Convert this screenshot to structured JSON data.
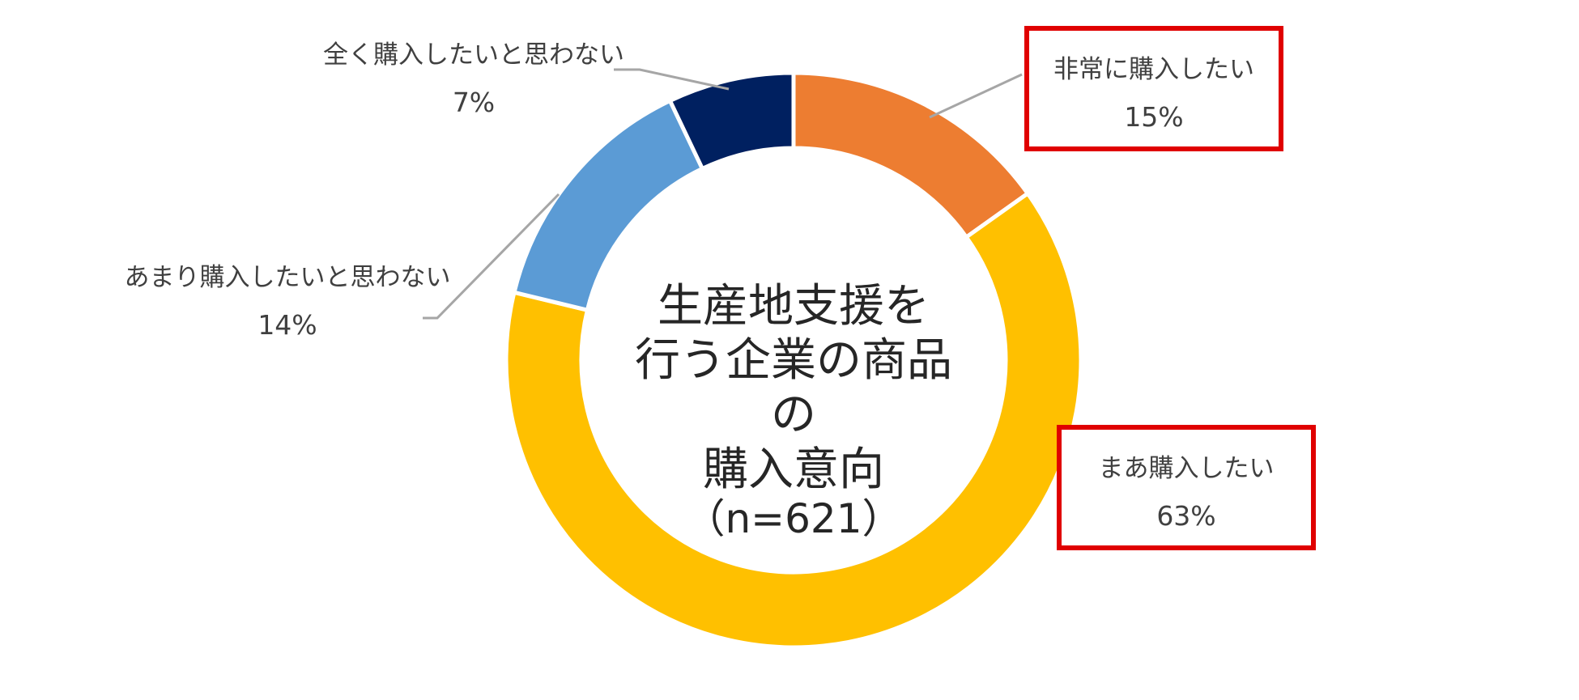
{
  "chart_data": {
    "type": "pie",
    "donut": true,
    "categories": [
      "非常に購入したい",
      "まあ購入したい",
      "あまり購入したいと思わない",
      "全く購入したいと思わない"
    ],
    "values": [
      15,
      63,
      14,
      7
    ],
    "value_labels": [
      "15%",
      "63%",
      "14%",
      "7%"
    ],
    "colors": [
      "#ed7d31",
      "#ffc000",
      "#5b9bd5",
      "#002060"
    ],
    "highlighted": [
      "非常に購入したい",
      "まあ購入したい"
    ],
    "highlight_color": "#e00000",
    "center_title": [
      "生産地支援を",
      "行う企業の商品の",
      "購入意向"
    ],
    "center_note": "（n=621）",
    "legend": "none"
  }
}
